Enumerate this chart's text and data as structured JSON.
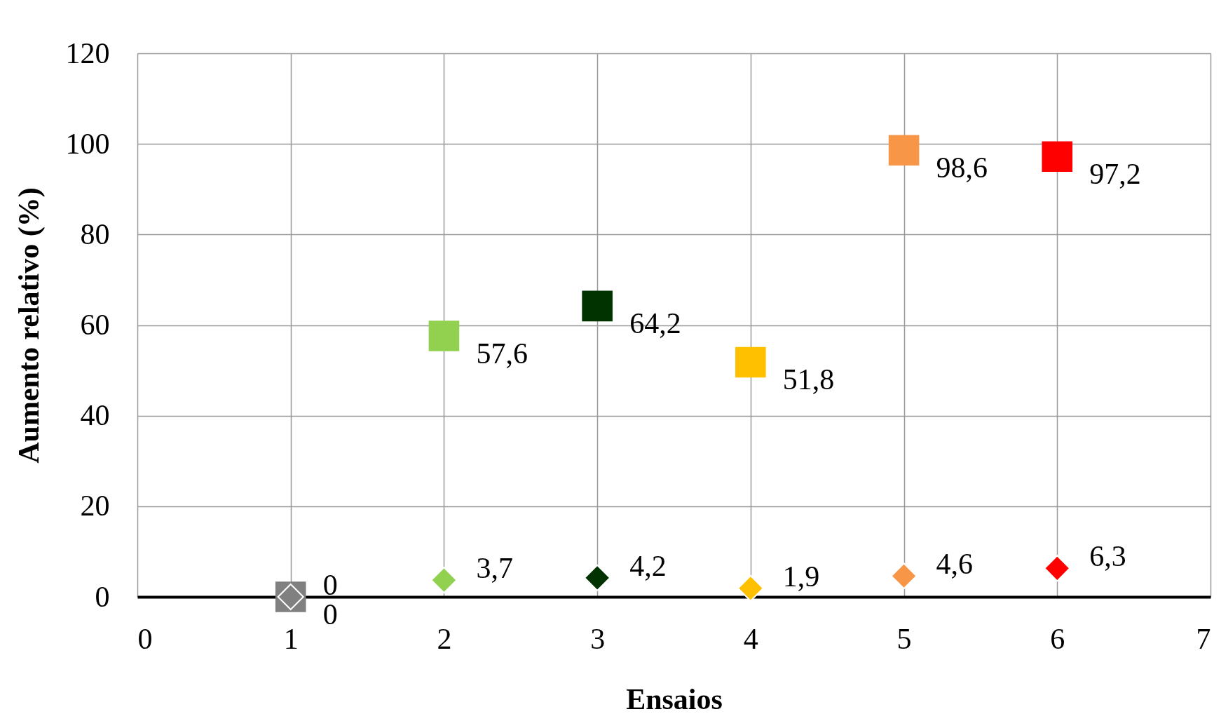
{
  "chart_data": {
    "type": "scatter",
    "xlabel": "Ensaios",
    "ylabel": "Aumento relativo (%)",
    "xlim": [
      0,
      7
    ],
    "xticks": [
      0,
      1,
      2,
      3,
      4,
      5,
      6,
      7
    ],
    "ylim": [
      0,
      120
    ],
    "yticks": [
      0,
      20,
      40,
      60,
      80,
      100,
      120
    ],
    "grid": true,
    "series": [
      {
        "marker": "square",
        "x": [
          1,
          2,
          3,
          4,
          5,
          6
        ],
        "values": [
          0,
          57.6,
          64.2,
          51.8,
          98.6,
          97.2
        ],
        "value_labels": [
          "0",
          "57,6",
          "64,2",
          "51,8",
          "98,6",
          "97,2"
        ],
        "colors": [
          "#808080",
          "#92d050",
          "#003300",
          "#ffc000",
          "#f79646",
          "#ff0000"
        ]
      },
      {
        "marker": "diamond",
        "x": [
          1,
          2,
          3,
          4,
          5,
          6
        ],
        "values": [
          0,
          3.7,
          4.2,
          1.9,
          4.6,
          6.3
        ],
        "value_labels": [
          "0",
          "3,7",
          "4,2",
          "1,9",
          "4,6",
          "6,3"
        ],
        "colors": [
          "#808080",
          "#92d050",
          "#003300",
          "#ffc000",
          "#f79646",
          "#ff0000"
        ]
      }
    ]
  }
}
